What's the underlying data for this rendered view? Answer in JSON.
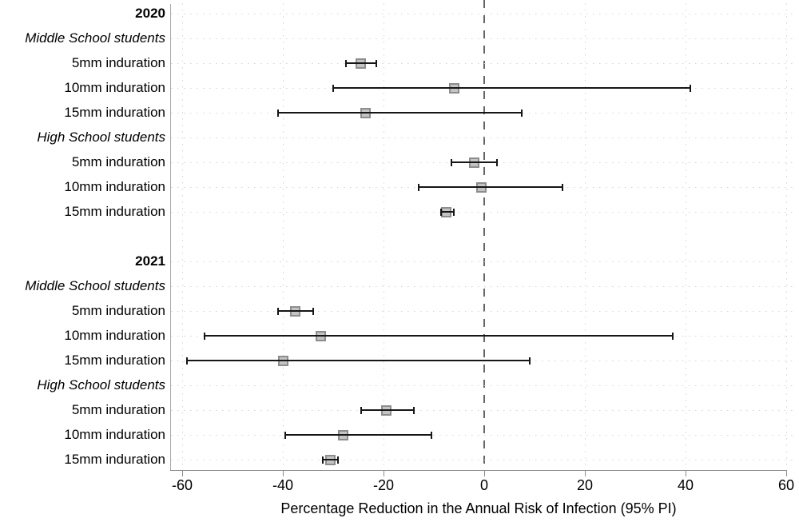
{
  "chart": {
    "xlabel": "Percentage Reduction in the Annual Risk of Infection (95% PI)",
    "x_ticks": [
      {
        "v": -60,
        "label": "-60"
      },
      {
        "v": -40,
        "label": "-40"
      },
      {
        "v": -20,
        "label": "-20"
      },
      {
        "v": 0,
        "label": "0"
      },
      {
        "v": 20,
        "label": "20"
      },
      {
        "v": 40,
        "label": "40"
      },
      {
        "v": 60,
        "label": "60"
      }
    ],
    "xlim": [
      -63,
      62
    ],
    "zero_reference_line": 0,
    "colors": {
      "marker_fill": "#c4c4c4",
      "marker_border": "#8d8d8d",
      "ci_line": "#161616",
      "axis_line": "#8c8c8c",
      "y_axis_line": "#a8a8a8",
      "grid_dots": "#d4d4d4",
      "zero_dash": "#666666",
      "text": "#000000"
    }
  },
  "chart_data": {
    "type": "scatter",
    "subtype": "forest-plot",
    "xlabel": "Percentage Reduction in the Annual Risk of Infection (95% PI)",
    "legend_position": "none",
    "grid": "dotted",
    "rows": [
      {
        "type": "header",
        "label": "2020"
      },
      {
        "type": "group",
        "label": "Middle School students"
      },
      {
        "type": "data",
        "label": "5mm induration",
        "est": -24.5,
        "lo": -27.5,
        "hi": -21.5
      },
      {
        "type": "data",
        "label": "10mm induration",
        "est": -6,
        "lo": -30,
        "hi": 41
      },
      {
        "type": "data",
        "label": "15mm induration",
        "est": -23.5,
        "lo": -41,
        "hi": 7.5
      },
      {
        "type": "group",
        "label": "High School students"
      },
      {
        "type": "data",
        "label": "5mm induration",
        "est": -2,
        "lo": -6.5,
        "hi": 2.5
      },
      {
        "type": "data",
        "label": "10mm induration",
        "est": -0.5,
        "lo": -13,
        "hi": 15.5
      },
      {
        "type": "data",
        "label": "15mm induration",
        "est": -7.5,
        "lo": -8.5,
        "hi": -6
      },
      {
        "type": "spacer",
        "label": ""
      },
      {
        "type": "header",
        "label": "2021"
      },
      {
        "type": "group",
        "label": "Middle School students"
      },
      {
        "type": "data",
        "label": "5mm induration",
        "est": -37.5,
        "lo": -41,
        "hi": -34
      },
      {
        "type": "data",
        "label": "10mm induration",
        "est": -32.5,
        "lo": -55.5,
        "hi": 37.5
      },
      {
        "type": "data",
        "label": "15mm induration",
        "est": -40,
        "lo": -59,
        "hi": 9
      },
      {
        "type": "group",
        "label": "High School students"
      },
      {
        "type": "data",
        "label": "5mm induration",
        "est": -19.5,
        "lo": -24.5,
        "hi": -14
      },
      {
        "type": "data",
        "label": "10mm induration",
        "est": -28,
        "lo": -39.5,
        "hi": -10.5
      },
      {
        "type": "data",
        "label": "15mm induration",
        "est": -30.5,
        "lo": -32,
        "hi": -29
      }
    ]
  }
}
